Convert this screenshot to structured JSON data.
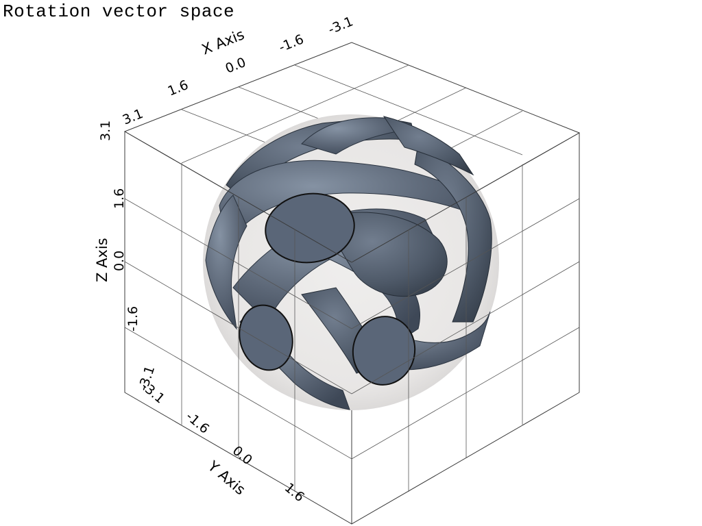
{
  "title": "Rotation vector space",
  "axes": {
    "x": {
      "title": "X Axis",
      "ticks": [
        "1.6",
        "0.0",
        "-1.6",
        "-3.1"
      ]
    },
    "y": {
      "title": "Y Axis",
      "ticks": [
        "-3.1",
        "-1.6",
        "0.0",
        "1.6"
      ]
    },
    "z": {
      "title": "Z Axis",
      "ticks": [
        "3.1",
        "1.6",
        "0.0",
        "-1.6",
        "-3.1"
      ]
    },
    "corner_label": "3.1"
  },
  "colors": {
    "background": "#ffffff",
    "sphere": "#e6e4e3",
    "tube": "#5d6878",
    "grid": "#3a3a3a"
  }
}
